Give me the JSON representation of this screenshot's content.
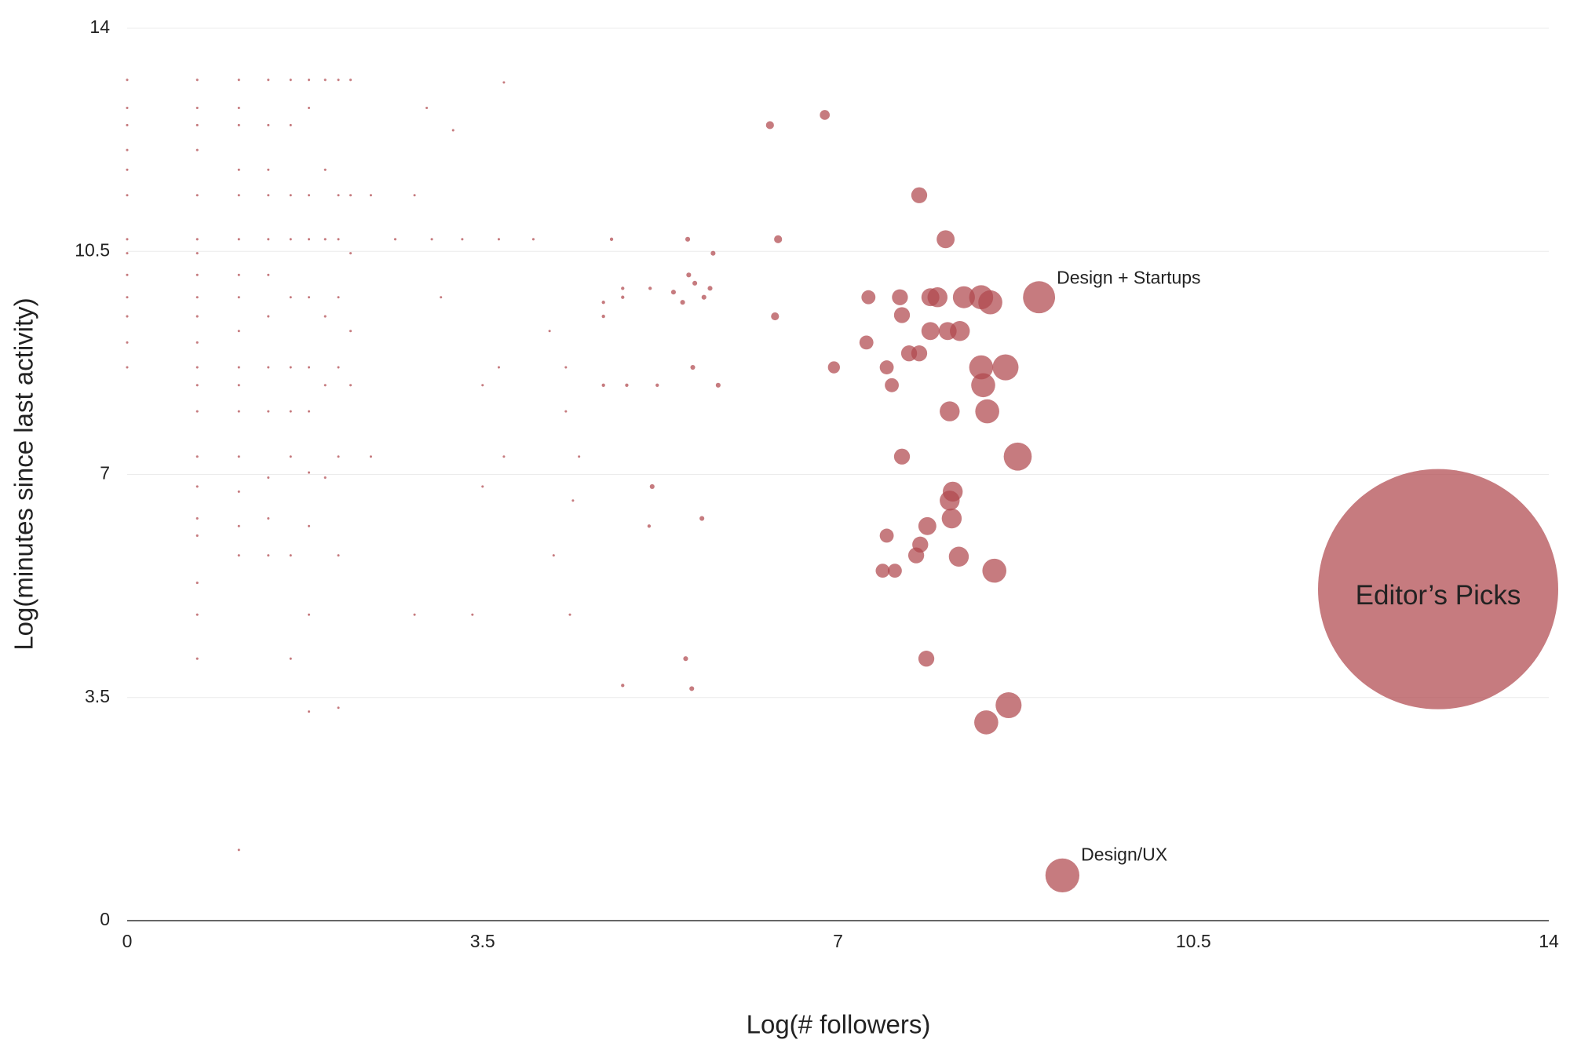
{
  "chart_data": {
    "type": "scatter",
    "xlabel": "Log(# followers)",
    "ylabel": "Log(minutes since last activity)",
    "color": "#b0484d",
    "xlim": [
      0,
      14
    ],
    "xticks": [
      0,
      3.5,
      7,
      10.5,
      14
    ],
    "ylim": [
      0,
      14
    ],
    "yticks": [
      0,
      3.5,
      7,
      10.5,
      14
    ],
    "grid": true,
    "annotations": [
      {
        "text": "Editor’s Picks",
        "x": 12.91,
        "y": 5.2,
        "position": "center"
      },
      {
        "text": "Design + Startups",
        "x": 8.98,
        "y": 9.78,
        "position": "upper-right"
      },
      {
        "text": "Design/UX",
        "x": 9.21,
        "y": 0.71,
        "position": "upper-right"
      }
    ],
    "x": [
      12.91,
      8.98,
      9.21,
      6.33,
      6.87,
      7.8,
      8.06,
      6.41,
      7.3,
      7.61,
      7.91,
      7.98,
      8.24,
      8.41,
      8.5,
      6.38,
      7.63,
      7.91,
      8.08,
      8.2,
      7.28,
      7.7,
      7.8,
      6.96,
      7.48,
      8.41,
      8.65,
      7.53,
      8.43,
      8.1,
      8.47,
      7.63,
      8.77,
      8.13,
      8.1,
      8.12,
      7.88,
      7.48,
      7.81,
      7.77,
      8.19,
      7.44,
      7.56,
      8.54,
      7.87,
      8.68,
      8.46,
      5.52,
      5.77,
      4.77,
      5.53,
      5.59,
      5.38,
      5.47,
      5.74,
      5.68,
      5.15,
      4.88,
      4.88,
      4.69,
      4.69,
      5.57,
      5.82,
      5.22,
      4.92,
      4.69,
      5.17,
      5.66,
      5.14,
      5.5,
      5.56,
      4.88,
      4.36,
      0,
      0,
      0,
      0,
      0,
      0,
      0,
      0,
      0,
      0,
      0,
      0,
      0,
      0.69,
      0.69,
      0.69,
      0.69,
      0.69,
      0.69,
      0.69,
      0.69,
      0.69,
      0.69,
      0.69,
      0.69,
      0.69,
      0.69,
      0.69,
      0.69,
      0.69,
      0.69,
      0.69,
      0.69,
      0.69,
      1.1,
      1.1,
      1.1,
      1.1,
      1.1,
      1.1,
      1.1,
      1.1,
      1.1,
      1.1,
      1.1,
      1.1,
      1.1,
      1.1,
      1.1,
      1.1,
      1.1,
      1.39,
      1.39,
      1.39,
      1.39,
      1.39,
      1.39,
      1.39,
      1.39,
      1.39,
      1.39,
      1.39,
      1.39,
      1.61,
      1.61,
      1.61,
      1.61,
      1.61,
      1.61,
      1.61,
      1.61,
      1.61,
      1.61,
      1.79,
      1.79,
      1.79,
      1.79,
      1.79,
      1.79,
      1.79,
      1.79,
      1.79,
      1.79,
      1.79,
      1.95,
      1.95,
      1.95,
      1.95,
      1.95,
      1.95,
      2.08,
      2.08,
      2.08,
      2.08,
      2.08,
      2.08,
      2.08,
      2.08,
      2.2,
      2.2,
      2.2,
      2.2,
      2.2,
      2.4,
      2.64,
      2.83,
      3.0,
      3.09,
      3.3,
      3.5,
      3.66,
      3.66,
      3.71,
      3.71,
      4.0,
      4.16,
      4.32,
      4.32,
      4.45,
      4.39,
      2.95,
      3.21,
      4.2,
      3.4,
      2.4,
      2.83,
      3.5
    ],
    "values": [
      5.2,
      9.78,
      0.71,
      12.48,
      12.64,
      11.38,
      10.69,
      10.69,
      9.78,
      9.78,
      9.78,
      9.78,
      9.78,
      9.78,
      9.7,
      9.48,
      9.5,
      9.25,
      9.25,
      9.25,
      9.07,
      8.9,
      8.9,
      8.68,
      8.68,
      8.68,
      8.68,
      8.4,
      8.4,
      7.99,
      7.99,
      7.28,
      7.28,
      6.73,
      6.59,
      6.31,
      6.19,
      6.04,
      5.9,
      5.73,
      5.71,
      5.49,
      5.49,
      5.49,
      4.11,
      3.38,
      3.11,
      10.69,
      10.47,
      10.69,
      10.13,
      10.0,
      9.86,
      9.7,
      9.92,
      9.78,
      9.92,
      9.92,
      9.78,
      9.7,
      9.48,
      8.68,
      8.4,
      8.4,
      8.4,
      8.4,
      6.81,
      6.31,
      6.19,
      4.11,
      3.64,
      3.69,
      4.8,
      13.19,
      12.75,
      12.48,
      12.09,
      11.78,
      11.38,
      10.69,
      10.47,
      10.13,
      9.78,
      9.48,
      9.07,
      8.68,
      13.19,
      12.75,
      12.48,
      12.09,
      11.38,
      10.69,
      10.47,
      10.13,
      9.78,
      9.48,
      9.07,
      8.68,
      8.4,
      7.99,
      7.28,
      6.81,
      6.31,
      6.04,
      5.3,
      4.8,
      4.11,
      13.19,
      12.75,
      12.48,
      11.78,
      11.38,
      10.69,
      10.13,
      9.78,
      9.25,
      8.68,
      8.4,
      7.99,
      7.28,
      6.73,
      6.19,
      5.73,
      1.11,
      13.19,
      12.48,
      11.78,
      11.38,
      10.69,
      10.13,
      9.48,
      8.68,
      7.99,
      6.95,
      6.31,
      5.73,
      13.19,
      12.48,
      11.38,
      10.69,
      9.78,
      8.68,
      7.99,
      7.28,
      5.73,
      4.11,
      13.19,
      12.75,
      11.38,
      10.69,
      9.78,
      8.68,
      7.99,
      7.03,
      6.19,
      4.8,
      3.28,
      13.19,
      11.78,
      10.69,
      9.48,
      8.4,
      6.95,
      13.19,
      11.38,
      10.69,
      9.78,
      8.68,
      7.28,
      5.73,
      3.34,
      13.19,
      11.38,
      10.47,
      9.25,
      8.4,
      11.38,
      10.69,
      11.38,
      10.69,
      9.78,
      10.69,
      8.4,
      8.68,
      10.69,
      13.15,
      7.28,
      10.69,
      9.25,
      8.68,
      7.99,
      7.28,
      6.59,
      12.75,
      12.4,
      5.73,
      4.8,
      7.28,
      4.8,
      6.81
    ],
    "sizes": [
      10000,
      178,
      200,
      11,
      17,
      44,
      56,
      11,
      34,
      44,
      56,
      69,
      84,
      100,
      100,
      11,
      44,
      56,
      56,
      69,
      34,
      44,
      44,
      25,
      34,
      100,
      117,
      34,
      100,
      69,
      100,
      44,
      136,
      69,
      69,
      69,
      56,
      34,
      44,
      44,
      69,
      34,
      34,
      100,
      44,
      117,
      100,
      4,
      4,
      2,
      4,
      4,
      4,
      4,
      4,
      4,
      2,
      2,
      2,
      2,
      2,
      4,
      4,
      2,
      2,
      2,
      4,
      4,
      2,
      4,
      4,
      2,
      1,
      1,
      1,
      1,
      1,
      1,
      1,
      1,
      1,
      1,
      1,
      1,
      1,
      1,
      1,
      1,
      1,
      1,
      1,
      1,
      1,
      1,
      1,
      1,
      1,
      1,
      1,
      1,
      1,
      1,
      1,
      1,
      1,
      1,
      1,
      1,
      1,
      1,
      1,
      1,
      1,
      1,
      1,
      1,
      1,
      1,
      1,
      1,
      1,
      1,
      1,
      1,
      1,
      1,
      1,
      1,
      1,
      1,
      1,
      1,
      1,
      1,
      1,
      1,
      1,
      1,
      1,
      1,
      1,
      1,
      1,
      1,
      1,
      1,
      1,
      1,
      1,
      1,
      1,
      1,
      1,
      1,
      1,
      1,
      1,
      1,
      1,
      1,
      1,
      1,
      1,
      1,
      1,
      1,
      1,
      1,
      1,
      1,
      1,
      1,
      1,
      1,
      1,
      1,
      1,
      1,
      1,
      1,
      1,
      1,
      1,
      1,
      1,
      1,
      1,
      1,
      1,
      1,
      1,
      1,
      1,
      1,
      1,
      1,
      1,
      1,
      1,
      1
    ]
  }
}
